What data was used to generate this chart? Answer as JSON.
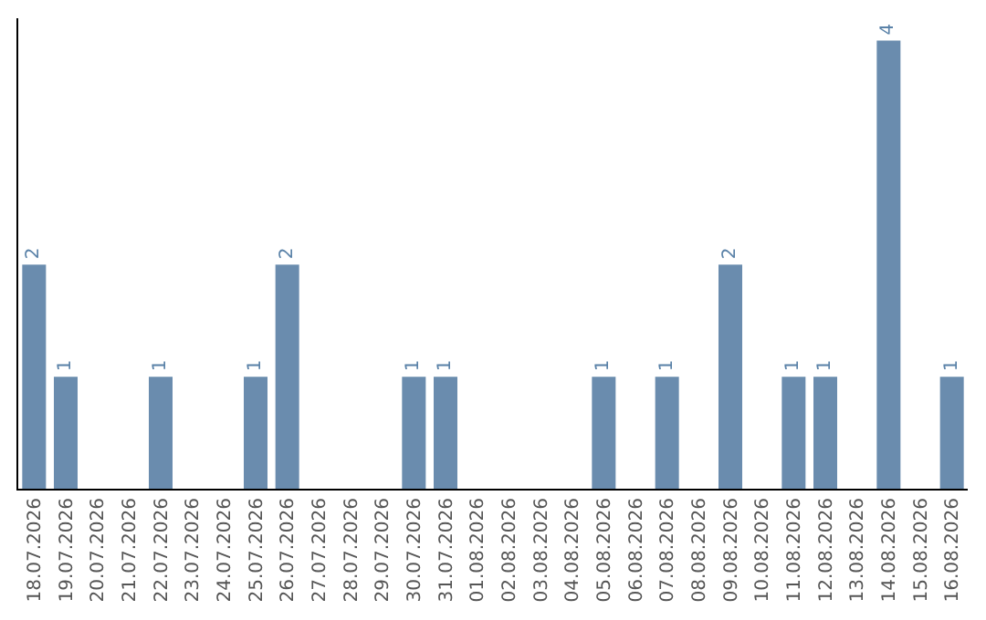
{
  "chart_data": {
    "type": "bar",
    "categories": [
      "18.07.2026",
      "19.07.2026",
      "20.07.2026",
      "21.07.2026",
      "22.07.2026",
      "23.07.2026",
      "24.07.2026",
      "25.07.2026",
      "26.07.2026",
      "27.07.2026",
      "28.07.2026",
      "29.07.2026",
      "30.07.2026",
      "31.07.2026",
      "01.08.2026",
      "02.08.2026",
      "03.08.2026",
      "04.08.2026",
      "05.08.2026",
      "06.08.2026",
      "07.08.2026",
      "08.08.2026",
      "09.08.2026",
      "10.08.2026",
      "11.08.2026",
      "12.08.2026",
      "13.08.2026",
      "14.08.2026",
      "15.08.2026",
      "16.08.2026"
    ],
    "values": [
      2,
      1,
      0,
      0,
      1,
      0,
      0,
      1,
      2,
      0,
      0,
      0,
      1,
      1,
      0,
      0,
      0,
      0,
      1,
      0,
      1,
      0,
      2,
      0,
      1,
      1,
      0,
      4,
      0,
      1
    ],
    "value_labels": [
      "2",
      "1",
      null,
      null,
      "1",
      null,
      null,
      "1",
      "2",
      null,
      null,
      null,
      "1",
      "1",
      null,
      null,
      null,
      null,
      "1",
      null,
      "1",
      null,
      "2",
      null,
      "1",
      "1",
      null,
      "4",
      null,
      "1"
    ],
    "color": "#6a8cae",
    "ylim": [
      0,
      4.2
    ],
    "tick_labels": "x",
    "grid": false,
    "legend": false
  }
}
